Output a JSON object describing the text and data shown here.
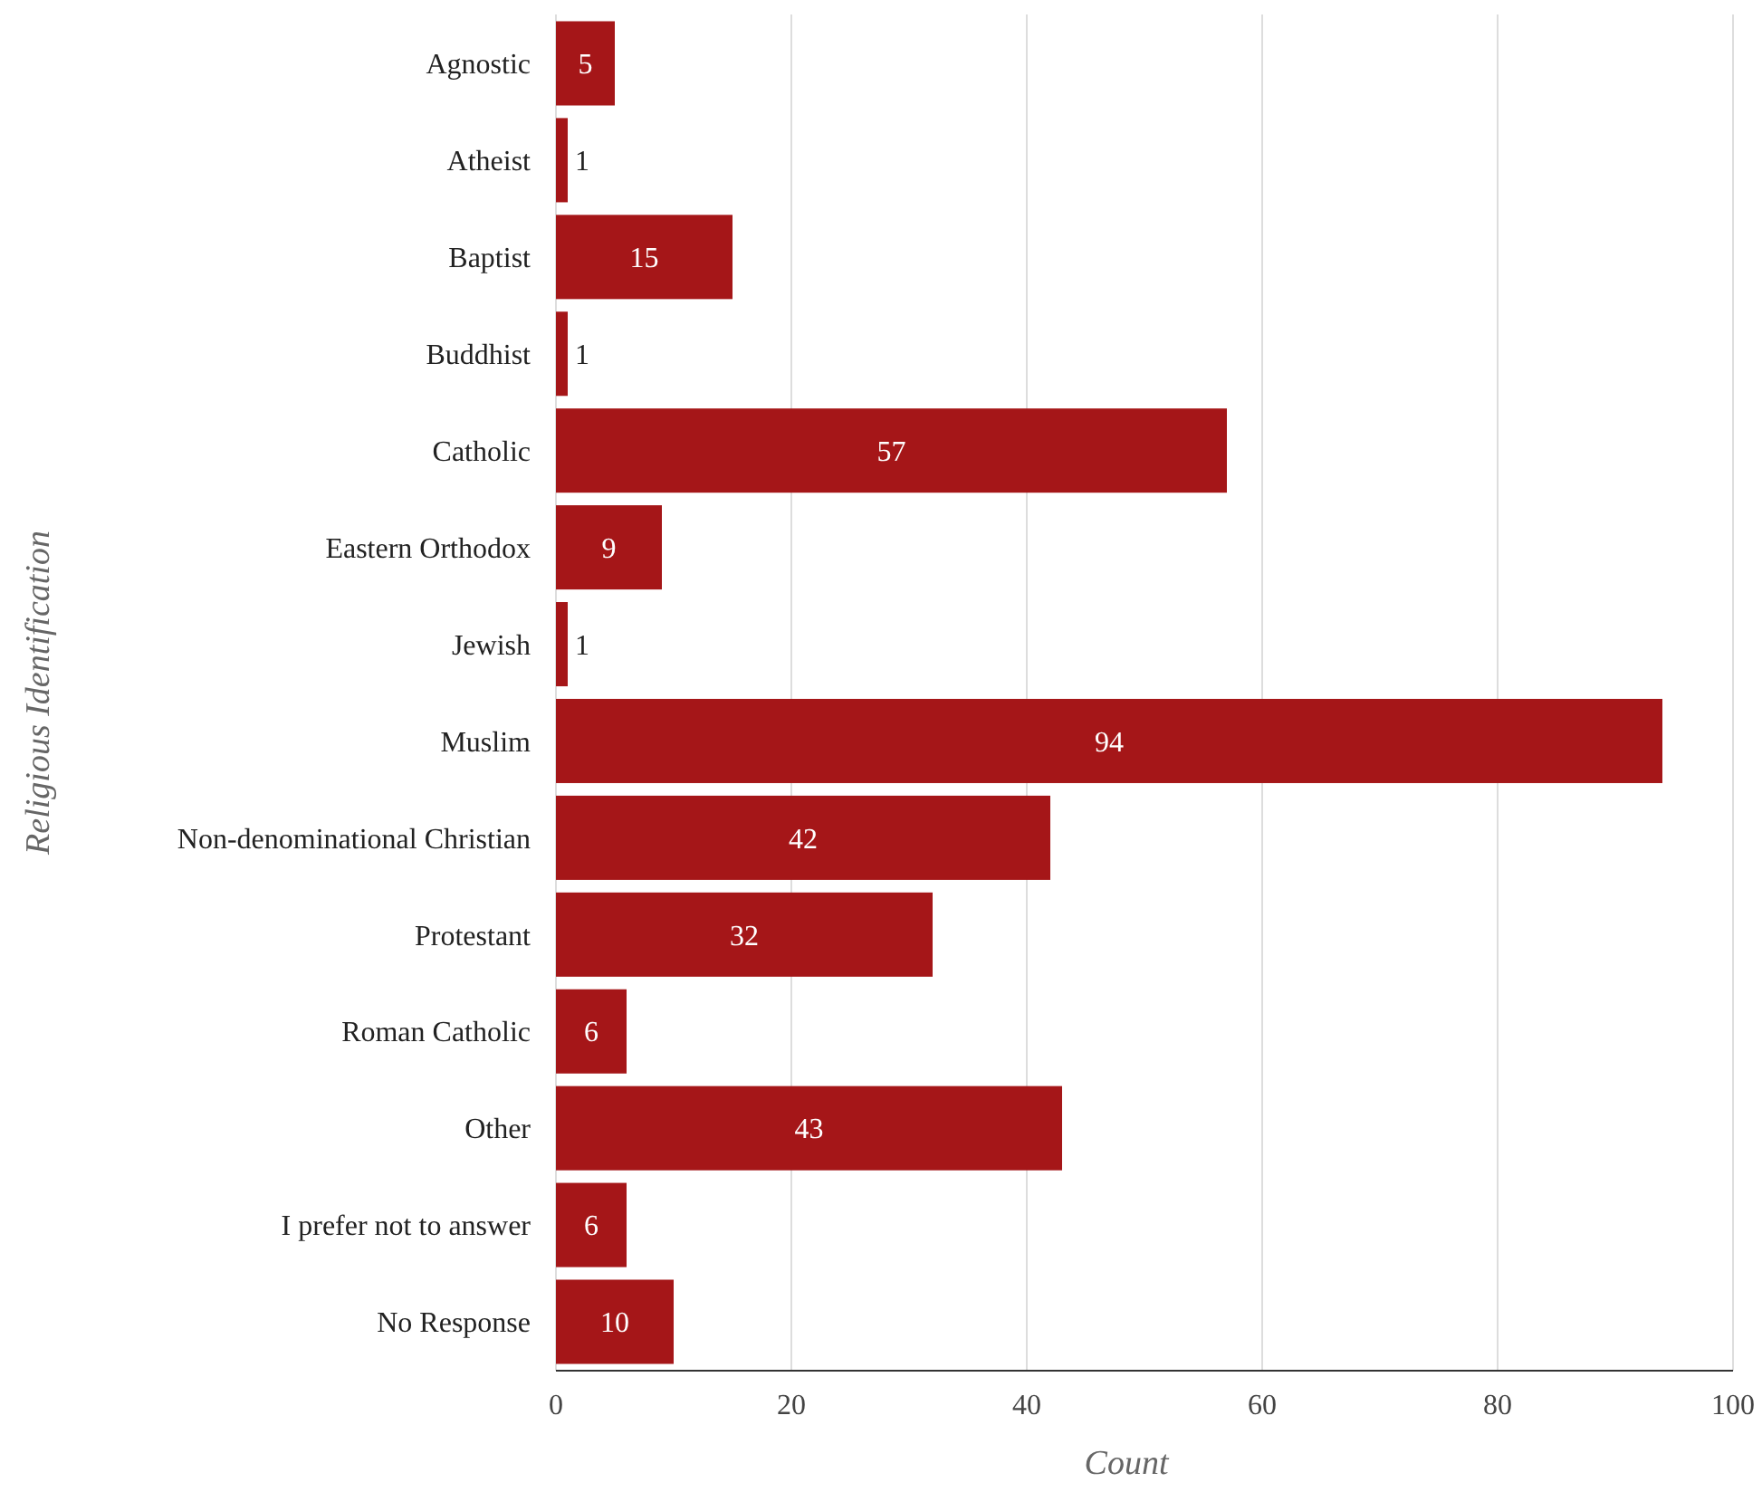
{
  "chart_data": {
    "type": "bar",
    "orientation": "horizontal",
    "xlabel": "Count",
    "ylabel": "Religious Identification",
    "categories": [
      "Agnostic",
      "Atheist",
      "Baptist",
      "Buddhist",
      "Catholic",
      "Eastern Orthodox",
      "Jewish",
      "Muslim",
      "Non-denominational Christian",
      "Protestant",
      "Roman Catholic",
      "Other",
      "I prefer not to answer",
      "No Response"
    ],
    "values": [
      5,
      1,
      15,
      1,
      57,
      9,
      1,
      94,
      42,
      32,
      6,
      43,
      6,
      10
    ],
    "color": "#a51618",
    "xlim": [
      0,
      100
    ],
    "xticks": [
      0,
      20,
      40,
      60,
      80,
      100
    ],
    "grid": "x",
    "data_labels": true
  }
}
